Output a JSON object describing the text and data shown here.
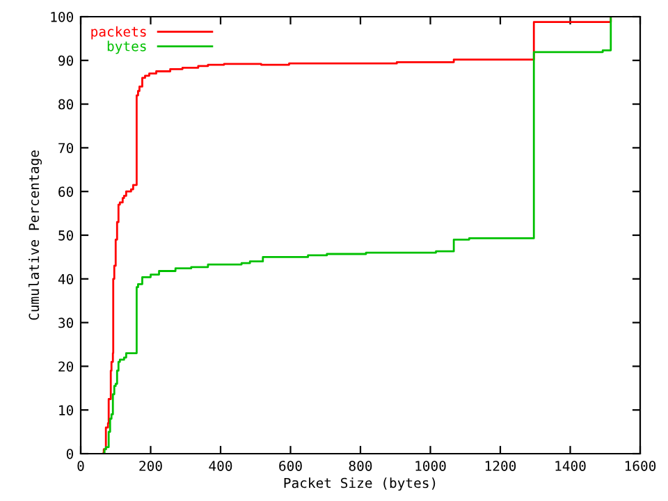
{
  "chart_data": {
    "type": "step",
    "xlabel": "Packet Size (bytes)",
    "ylabel": "Cumulative Percentage",
    "xlim": [
      0,
      1600
    ],
    "xticks": [
      0,
      200,
      400,
      600,
      800,
      1000,
      1200,
      1400,
      1600
    ],
    "ylim": [
      0,
      100
    ],
    "yticks": [
      0,
      10,
      20,
      30,
      40,
      50,
      60,
      70,
      80,
      90,
      100
    ],
    "legend": "top left",
    "grid": false,
    "series": [
      {
        "name": "packets",
        "color": "#ff0000",
        "x": [
          64,
          66,
          72,
          78,
          80,
          86,
          88,
          92,
          93,
          96,
          100,
          104,
          108,
          112,
          120,
          124,
          130,
          144,
          150,
          160,
          164,
          168,
          176,
          184,
          196,
          216,
          256,
          291,
          336,
          364,
          410,
          516,
          596,
          904,
          1067,
          1296,
          1516
        ],
        "values": [
          0,
          1,
          6,
          7,
          12.5,
          19,
          21,
          23,
          40,
          43,
          49,
          53,
          57,
          57.5,
          58.5,
          59,
          60,
          60.5,
          61.5,
          82,
          83,
          84,
          86,
          86.5,
          87,
          87.5,
          88,
          88.3,
          88.7,
          89,
          89.2,
          89.0,
          89.3,
          89.6,
          90.2,
          98.8,
          100
        ]
      },
      {
        "name": "bytes",
        "color": "#00c000",
        "x": [
          66,
          68,
          72,
          80,
          84,
          88,
          92,
          96,
          100,
          104,
          108,
          112,
          124,
          130,
          160,
          164,
          176,
          200,
          224,
          271,
          316,
          364,
          460,
          484,
          521,
          650,
          704,
          816,
          1016,
          1067,
          1111,
          1296,
          1493,
          1516
        ],
        "values": [
          0,
          1,
          1.5,
          5,
          8,
          9,
          13.6,
          15.5,
          16,
          19,
          21,
          21.5,
          22,
          23,
          38.1,
          38.8,
          40.4,
          41,
          41.8,
          42.4,
          42.7,
          43.3,
          43.6,
          44.0,
          45.0,
          45.4,
          45.7,
          46.0,
          46.3,
          49.0,
          49.3,
          91.9,
          92.3,
          100
        ]
      }
    ]
  }
}
